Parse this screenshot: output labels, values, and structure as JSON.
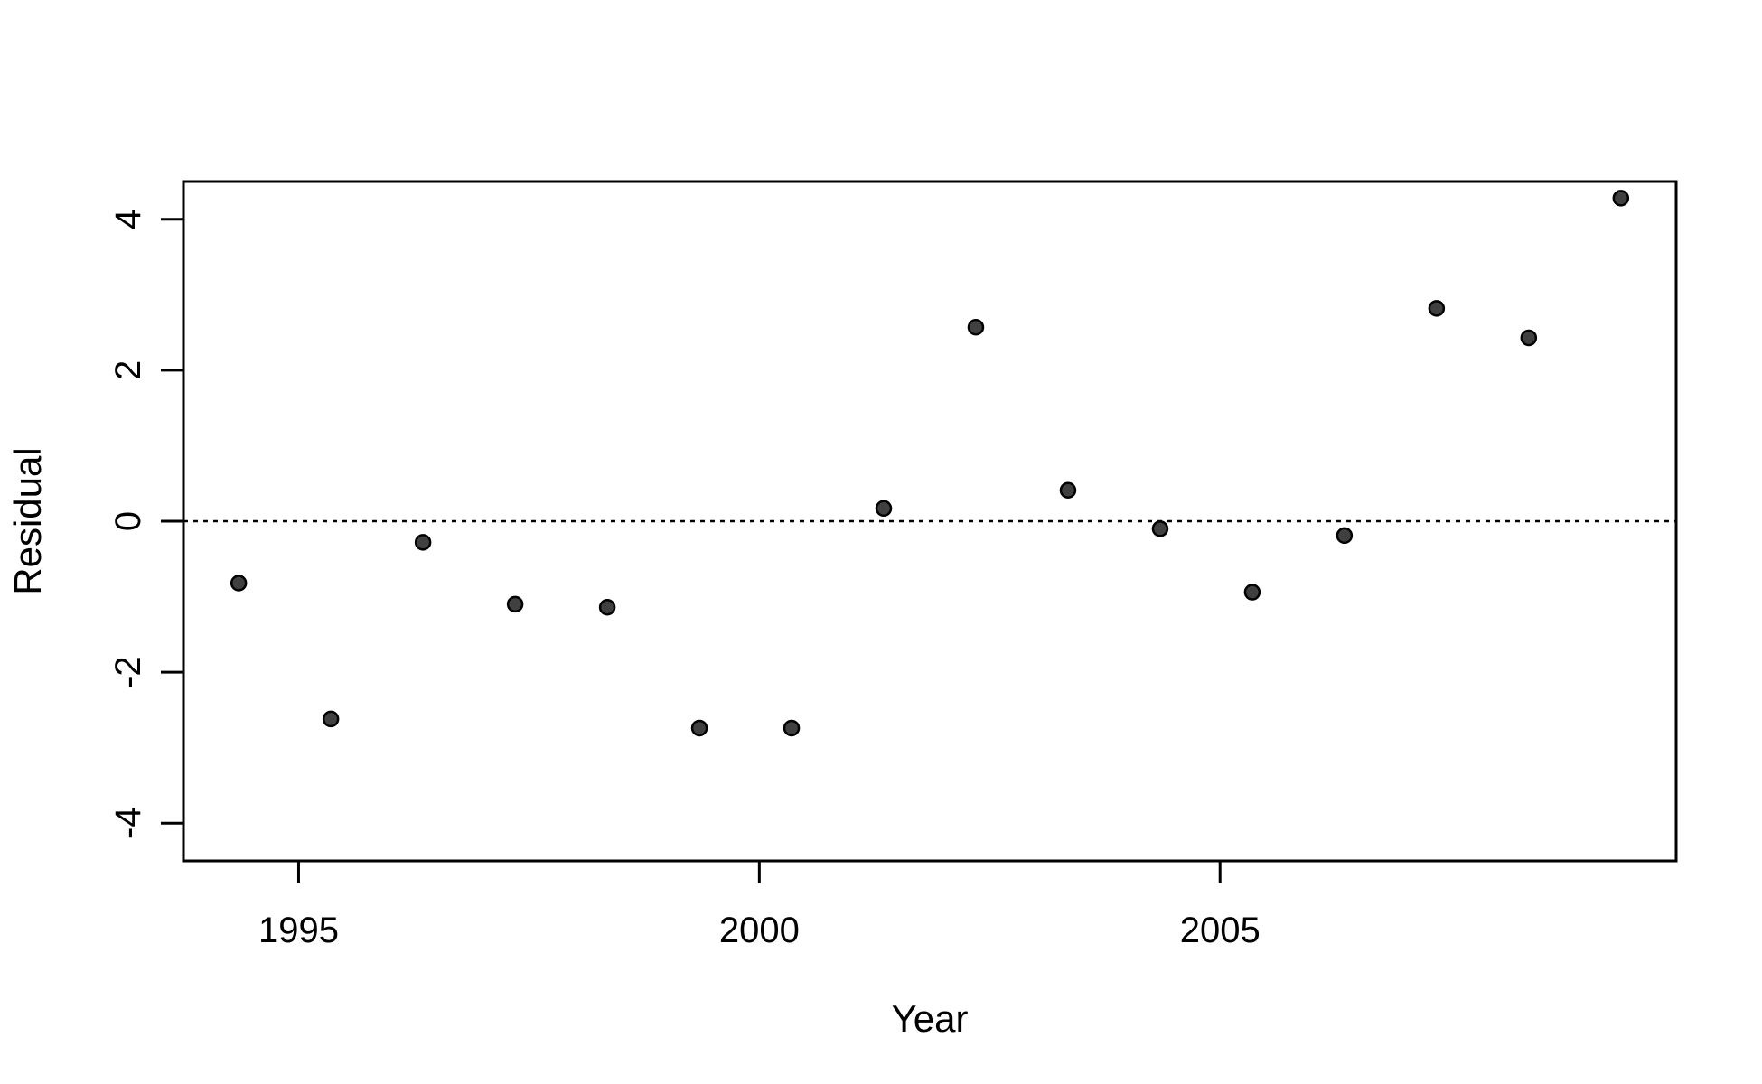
{
  "chart_data": {
    "type": "scatter",
    "title": "",
    "xlabel": "Year",
    "ylabel": "Residual",
    "xlim": [
      1993.75,
      2009.95
    ],
    "ylim": [
      -4.5,
      4.5
    ],
    "x_ticks": [
      1995,
      2000,
      2005
    ],
    "x_tick_labels": [
      "1995",
      "2000",
      "2005"
    ],
    "y_ticks": [
      -4,
      -2,
      0,
      2,
      4
    ],
    "y_tick_labels": [
      "-4",
      "-2",
      "0",
      "2",
      "4"
    ],
    "grid": false,
    "legend": null,
    "reference_line": {
      "y": 0,
      "style": "dotted"
    },
    "point_color": "#404040",
    "x": [
      1994.35,
      1995.35,
      1996.35,
      1997.35,
      1998.35,
      1999.35,
      2000.35,
      2001.35,
      2002.35,
      2003.35,
      2004.35,
      2005.35,
      2006.35,
      2007.35,
      2008.35,
      2009.35
    ],
    "y": [
      -0.82,
      -2.62,
      -0.28,
      -1.1,
      -1.14,
      -2.74,
      -2.74,
      0.17,
      2.57,
      0.41,
      -0.1,
      -0.94,
      -0.19,
      2.82,
      2.43,
      4.28
    ]
  }
}
